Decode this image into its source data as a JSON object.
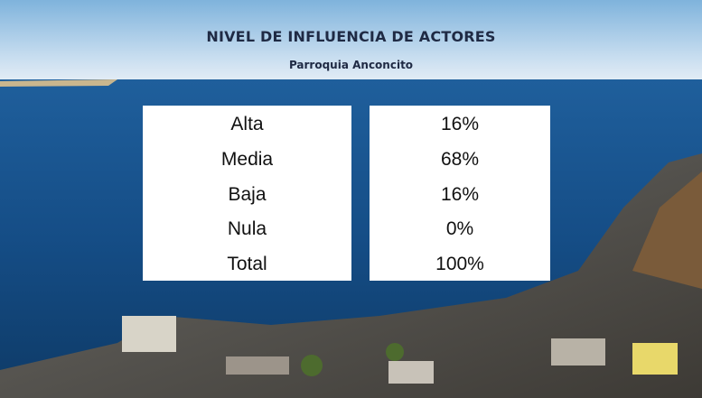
{
  "header": {
    "title": "NIVEL DE INFLUENCIA DE ACTORES",
    "subtitle": "Parroquia Anconcito"
  },
  "table": {
    "rows": [
      [
        "Alta",
        "16%"
      ],
      [
        "Media",
        "68%"
      ],
      [
        "Baja",
        "16%"
      ],
      [
        "Nula",
        "0%"
      ],
      [
        "Total",
        "100%"
      ]
    ]
  }
}
